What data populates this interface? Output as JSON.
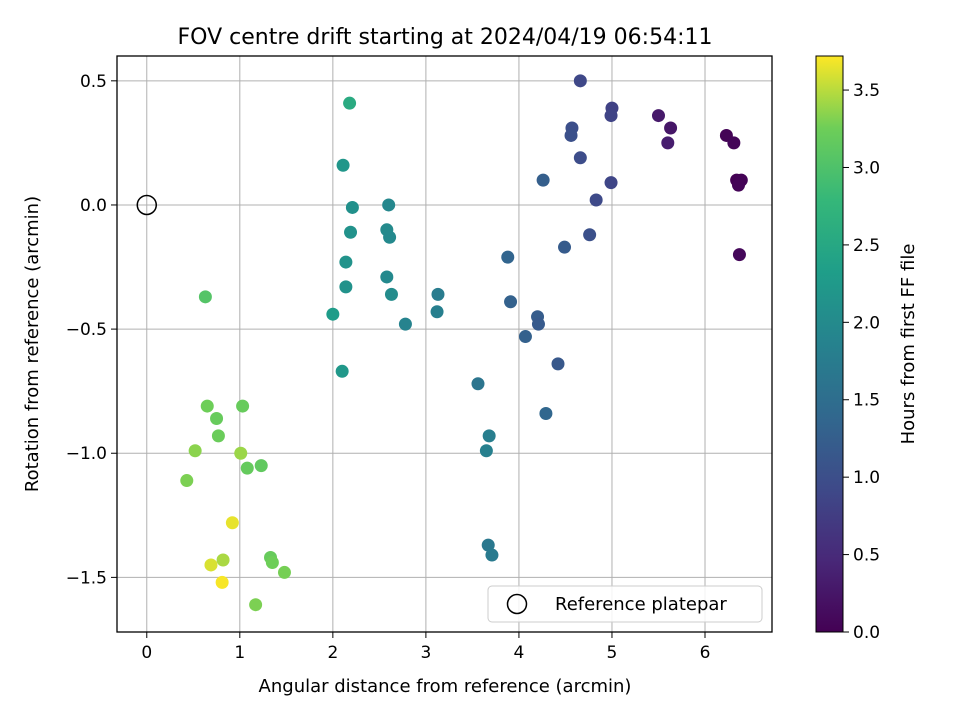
{
  "chart_data": {
    "type": "scatter",
    "title": "FOV centre drift starting at 2024/04/19 06:54:11",
    "xlabel": "Angular distance from reference (arcmin)",
    "ylabel": "Rotation from reference (arcmin)",
    "xlim": [
      -0.32,
      6.72
    ],
    "ylim": [
      -1.72,
      0.6
    ],
    "xticks": [
      0,
      1,
      2,
      3,
      4,
      5,
      6
    ],
    "xtick_labels": [
      "0",
      "1",
      "2",
      "3",
      "4",
      "5",
      "6"
    ],
    "yticks": [
      0.5,
      0.0,
      -0.5,
      -1.0,
      -1.5
    ],
    "ytick_labels": [
      "0.5",
      "0.0",
      "−0.5",
      "−1.0",
      "−1.5"
    ],
    "grid": true,
    "legend": {
      "placement": "lower-right",
      "entries": [
        {
          "label": "Reference platepar",
          "marker": "open-circle"
        }
      ]
    },
    "reference_point": {
      "x": 0,
      "y": 0
    },
    "colorbar": {
      "label": "Hours from first FF file",
      "colormap": "viridis",
      "range": [
        0,
        3.72
      ],
      "ticks": [
        0.0,
        0.5,
        1.0,
        1.5,
        2.0,
        2.5,
        3.0,
        3.5
      ],
      "tick_labels": [
        "0.0",
        "0.5",
        "1.0",
        "1.5",
        "2.0",
        "2.5",
        "3.0",
        "3.5"
      ]
    },
    "points": [
      {
        "x": 6.23,
        "y": 0.28,
        "c": 0.03
      },
      {
        "x": 6.31,
        "y": 0.25,
        "c": 0.05
      },
      {
        "x": 6.34,
        "y": 0.1,
        "c": 0.0
      },
      {
        "x": 6.39,
        "y": 0.1,
        "c": 0.02
      },
      {
        "x": 6.36,
        "y": 0.08,
        "c": 0.04
      },
      {
        "x": 6.37,
        "y": -0.2,
        "c": 0.08
      },
      {
        "x": 5.63,
        "y": 0.31,
        "c": 0.25
      },
      {
        "x": 5.5,
        "y": 0.36,
        "c": 0.3
      },
      {
        "x": 5.6,
        "y": 0.25,
        "c": 0.33
      },
      {
        "x": 5.0,
        "y": 0.39,
        "c": 0.82
      },
      {
        "x": 4.99,
        "y": 0.36,
        "c": 0.85
      },
      {
        "x": 4.99,
        "y": 0.09,
        "c": 0.88
      },
      {
        "x": 4.66,
        "y": 0.5,
        "c": 0.9
      },
      {
        "x": 4.57,
        "y": 0.31,
        "c": 1.0
      },
      {
        "x": 4.56,
        "y": 0.28,
        "c": 1.03
      },
      {
        "x": 4.66,
        "y": 0.19,
        "c": 0.98
      },
      {
        "x": 4.83,
        "y": 0.02,
        "c": 0.93
      },
      {
        "x": 4.76,
        "y": -0.12,
        "c": 1.02
      },
      {
        "x": 4.26,
        "y": 0.1,
        "c": 1.25
      },
      {
        "x": 4.49,
        "y": -0.17,
        "c": 1.2
      },
      {
        "x": 3.88,
        "y": -0.21,
        "c": 1.35
      },
      {
        "x": 3.91,
        "y": -0.39,
        "c": 1.3
      },
      {
        "x": 4.2,
        "y": -0.45,
        "c": 1.22
      },
      {
        "x": 4.21,
        "y": -0.48,
        "c": 1.18
      },
      {
        "x": 4.07,
        "y": -0.53,
        "c": 1.28
      },
      {
        "x": 4.42,
        "y": -0.64,
        "c": 1.15
      },
      {
        "x": 4.29,
        "y": -0.84,
        "c": 1.38
      },
      {
        "x": 3.56,
        "y": -0.72,
        "c": 1.62
      },
      {
        "x": 3.68,
        "y": -0.93,
        "c": 1.78
      },
      {
        "x": 3.65,
        "y": -0.99,
        "c": 1.82
      },
      {
        "x": 3.67,
        "y": -1.37,
        "c": 1.68
      },
      {
        "x": 3.71,
        "y": -1.41,
        "c": 1.72
      },
      {
        "x": 3.13,
        "y": -0.36,
        "c": 1.75
      },
      {
        "x": 3.12,
        "y": -0.43,
        "c": 1.8
      },
      {
        "x": 2.78,
        "y": -0.48,
        "c": 1.88
      },
      {
        "x": 2.63,
        "y": -0.36,
        "c": 2.02
      },
      {
        "x": 2.58,
        "y": -0.29,
        "c": 1.98
      },
      {
        "x": 2.6,
        "y": 0.0,
        "c": 1.95
      },
      {
        "x": 2.58,
        "y": -0.1,
        "c": 2.0
      },
      {
        "x": 2.61,
        "y": -0.13,
        "c": 1.97
      },
      {
        "x": 2.21,
        "y": -0.01,
        "c": 2.1
      },
      {
        "x": 2.19,
        "y": -0.11,
        "c": 2.12
      },
      {
        "x": 2.14,
        "y": -0.23,
        "c": 2.15
      },
      {
        "x": 2.14,
        "y": -0.33,
        "c": 2.13
      },
      {
        "x": 2.11,
        "y": 0.16,
        "c": 2.2
      },
      {
        "x": 2.18,
        "y": 0.41,
        "c": 2.55
      },
      {
        "x": 2.0,
        "y": -0.44,
        "c": 2.3
      },
      {
        "x": 2.1,
        "y": -0.67,
        "c": 2.22
      },
      {
        "x": 0.63,
        "y": -0.37,
        "c": 3.05
      },
      {
        "x": 0.65,
        "y": -0.81,
        "c": 3.25
      },
      {
        "x": 1.03,
        "y": -0.81,
        "c": 3.2
      },
      {
        "x": 0.75,
        "y": -0.86,
        "c": 3.2
      },
      {
        "x": 0.77,
        "y": -0.93,
        "c": 3.22
      },
      {
        "x": 0.52,
        "y": -0.99,
        "c": 3.35
      },
      {
        "x": 1.01,
        "y": -1.0,
        "c": 3.4
      },
      {
        "x": 1.08,
        "y": -1.06,
        "c": 3.18
      },
      {
        "x": 1.23,
        "y": -1.05,
        "c": 3.15
      },
      {
        "x": 0.43,
        "y": -1.11,
        "c": 3.3
      },
      {
        "x": 0.92,
        "y": -1.28,
        "c": 3.65
      },
      {
        "x": 0.69,
        "y": -1.45,
        "c": 3.6
      },
      {
        "x": 0.82,
        "y": -1.43,
        "c": 3.45
      },
      {
        "x": 0.81,
        "y": -1.52,
        "c": 3.7
      },
      {
        "x": 1.33,
        "y": -1.42,
        "c": 3.2
      },
      {
        "x": 1.35,
        "y": -1.44,
        "c": 3.25
      },
      {
        "x": 1.48,
        "y": -1.48,
        "c": 3.28
      },
      {
        "x": 1.17,
        "y": -1.61,
        "c": 3.3
      }
    ]
  }
}
